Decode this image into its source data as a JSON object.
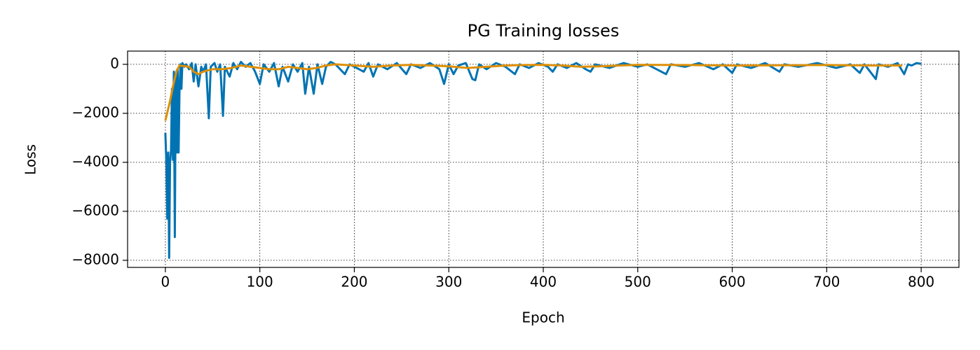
{
  "chart_data": {
    "type": "line",
    "title": "PG Training losses",
    "x_label": "Epoch",
    "y_label": "Loss",
    "xlim": [
      -40,
      840
    ],
    "ylim": [
      -8290,
      540
    ],
    "xticks": [
      0,
      100,
      200,
      300,
      400,
      500,
      600,
      700,
      800
    ],
    "yticks": [
      {
        "value": -8000,
        "label": "−8000"
      },
      {
        "value": -6000,
        "label": "−6000"
      },
      {
        "value": -4000,
        "label": "−4000"
      },
      {
        "value": -2000,
        "label": "−2000"
      },
      0
    ],
    "grid": true,
    "series": [
      {
        "color": "#0173b2",
        "x": [
          0,
          1,
          2,
          3,
          4,
          5,
          6,
          7,
          8,
          9,
          10,
          11,
          12,
          13,
          14,
          15,
          16,
          17,
          18,
          20,
          22,
          25,
          28,
          30,
          32,
          35,
          38,
          40,
          43,
          46,
          48,
          52,
          55,
          58,
          61,
          63,
          68,
          72,
          76,
          80,
          85,
          90,
          95,
          100,
          104,
          110,
          115,
          120,
          124,
          130,
          135,
          140,
          145,
          148,
          152,
          157,
          161,
          166,
          170,
          175,
          180,
          185,
          190,
          195,
          200,
          210,
          215,
          220,
          225,
          235,
          245,
          255,
          260,
          270,
          280,
          290,
          295,
          300,
          305,
          310,
          318,
          325,
          328,
          332,
          340,
          350,
          360,
          370,
          375,
          385,
          395,
          405,
          410,
          415,
          425,
          435,
          445,
          450,
          455,
          470,
          485,
          500,
          510,
          520,
          530,
          535,
          550,
          565,
          580,
          590,
          600,
          605,
          620,
          635,
          650,
          655,
          670,
          690,
          710,
          725,
          735,
          740,
          752,
          755,
          765,
          775,
          782,
          786,
          790,
          795,
          800
        ],
        "values": [
          -2800,
          -4000,
          -6300,
          -3600,
          -7900,
          -4000,
          -3500,
          -1000,
          -3900,
          -300,
          -7050,
          -500,
          -3600,
          -200,
          -3600,
          -1000,
          0,
          -1000,
          50,
          -100,
          0,
          -200,
          50,
          -700,
          0,
          -900,
          -100,
          -300,
          0,
          -2200,
          -100,
          50,
          -300,
          0,
          -2100,
          -100,
          -500,
          50,
          -200,
          100,
          -100,
          50,
          -300,
          -800,
          0,
          -300,
          50,
          -900,
          -100,
          -700,
          0,
          -300,
          50,
          -1200,
          -100,
          -1200,
          0,
          -800,
          -100,
          100,
          0,
          -200,
          -400,
          0,
          -100,
          -300,
          50,
          -500,
          0,
          -200,
          50,
          -400,
          0,
          -150,
          50,
          -200,
          -800,
          0,
          -400,
          -50,
          50,
          -600,
          -650,
          0,
          -200,
          50,
          -100,
          -400,
          0,
          -150,
          50,
          -100,
          -300,
          0,
          -150,
          50,
          -200,
          -300,
          0,
          -150,
          50,
          -100,
          0,
          -200,
          -400,
          0,
          -100,
          50,
          -200,
          0,
          -350,
          0,
          -150,
          50,
          -300,
          0,
          -100,
          50,
          -150,
          0,
          -350,
          0,
          -600,
          0,
          -100,
          50,
          -400,
          0,
          -50,
          50,
          20
        ]
      },
      {
        "color": "#de8f05",
        "x": [
          0,
          5,
          8,
          12,
          15,
          25,
          30,
          35,
          40,
          45,
          50,
          60,
          70,
          80,
          90,
          100,
          110,
          120,
          130,
          140,
          150,
          160,
          170,
          180,
          200,
          220,
          240,
          260,
          280,
          300,
          320,
          340,
          360,
          380,
          400,
          420,
          440,
          460,
          480,
          500,
          550,
          600,
          650,
          700,
          750,
          780
        ],
        "values": [
          -2300,
          -1500,
          -900,
          -250,
          -50,
          -100,
          -300,
          -400,
          -300,
          -250,
          -200,
          -200,
          -150,
          -50,
          -100,
          -150,
          -200,
          -200,
          -100,
          -150,
          -200,
          -150,
          -50,
          0,
          -50,
          -100,
          -50,
          -20,
          -50,
          -80,
          -150,
          -100,
          -50,
          -30,
          -20,
          -50,
          -100,
          -80,
          -50,
          -20,
          -30,
          -50,
          -40,
          -30,
          -50,
          -50
        ]
      }
    ]
  }
}
